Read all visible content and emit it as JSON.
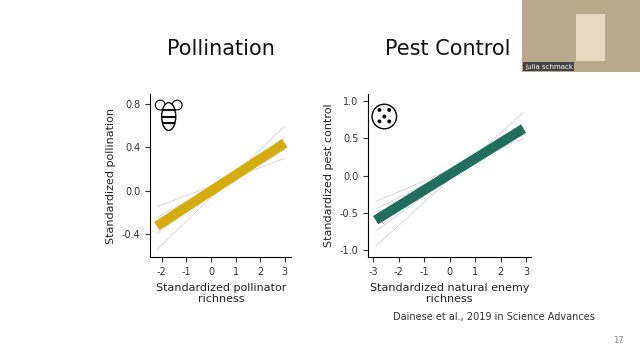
{
  "slide": {
    "page": 17,
    "source": "Dainese et al., 2019 in Science Advances",
    "speaker": "julia schmack"
  },
  "chart_data": [
    {
      "type": "line",
      "title": "Pollination",
      "xlabel": "Standardized pollinator\nrichness",
      "ylabel": "Standardized pollination",
      "xlim": [
        -2.46,
        3.26
      ],
      "ylim": [
        -0.62,
        0.9
      ],
      "xticks": [
        -2,
        -1,
        0,
        1,
        2,
        3
      ],
      "yticks": [
        -0.4,
        0.0,
        0.4,
        0.8
      ],
      "grid": false,
      "series": [
        {
          "color": "#d3d3d3",
          "x": [
            -2.2,
            3
          ],
          "values": [
            -0.55,
            0.6
          ]
        },
        {
          "color": "#d3d3d3",
          "x": [
            -2.2,
            3
          ],
          "values": [
            -0.4,
            0.5
          ]
        },
        {
          "color": "#d3d3d3",
          "x": [
            -2.2,
            3
          ],
          "values": [
            -0.25,
            0.38
          ]
        },
        {
          "color": "#d3d3d3",
          "x": [
            -2.2,
            3
          ],
          "values": [
            -0.15,
            0.3
          ]
        },
        {
          "color": "#d4ac0d",
          "x": [
            -2.2,
            3
          ],
          "values": [
            -0.33,
            0.44
          ]
        }
      ]
    },
    {
      "type": "line",
      "title": "Pest Control",
      "xlabel": "Standardized natural enemy\nrichness",
      "ylabel": "Standardized pest control",
      "xlim": [
        -3.2,
        3.2
      ],
      "ylim": [
        -1.1,
        1.1
      ],
      "xticks": [
        -3,
        -2,
        -1,
        0,
        1,
        2,
        3
      ],
      "yticks": [
        -1.0,
        -0.5,
        0.0,
        0.5,
        1.0
      ],
      "grid": false,
      "series": [
        {
          "color": "#d3d3d3",
          "x": [
            -2.9,
            2.9
          ],
          "values": [
            -0.95,
            0.85
          ]
        },
        {
          "color": "#d3d3d3",
          "x": [
            -2.9,
            2.9
          ],
          "values": [
            -0.75,
            0.7
          ]
        },
        {
          "color": "#d3d3d3",
          "x": [
            -2.9,
            2.9
          ],
          "values": [
            -0.45,
            0.55
          ]
        },
        {
          "color": "#d3d3d3",
          "x": [
            -2.9,
            2.9
          ],
          "values": [
            -0.35,
            0.5
          ]
        },
        {
          "color": "#1f6f5c",
          "x": [
            -2.9,
            2.9
          ],
          "values": [
            -0.6,
            0.63
          ]
        }
      ]
    }
  ]
}
